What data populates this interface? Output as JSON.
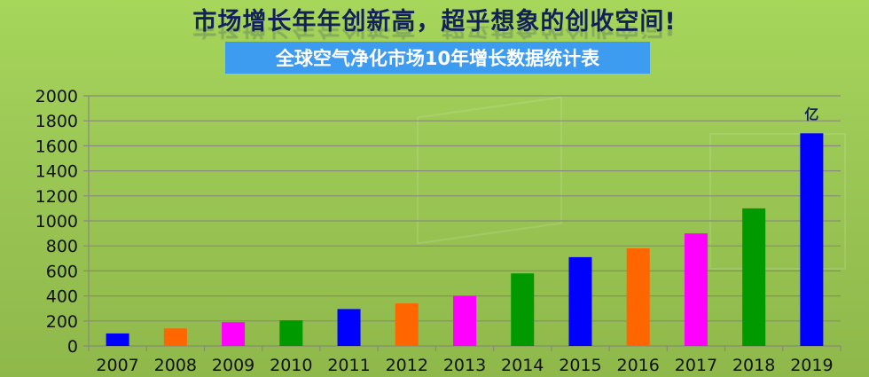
{
  "header": {
    "headline": "市场增长年年创新高，超乎想象的创收空间!",
    "subtitle": "全球空气净化市场10年增长数据统计表"
  },
  "chart_data": {
    "type": "bar",
    "title": "全球空气净化市场10年增长数据统计表",
    "unit_label": "亿",
    "categories": [
      "2007",
      "2008",
      "2009",
      "2010",
      "2011",
      "2012",
      "2013",
      "2014",
      "2015",
      "2016",
      "2017",
      "2018",
      "2019"
    ],
    "values": [
      100,
      140,
      190,
      205,
      295,
      340,
      400,
      580,
      710,
      780,
      900,
      1100,
      1700
    ],
    "colors": [
      "#0000ff",
      "#ff6600",
      "#ff00ff",
      "#009900",
      "#0000ff",
      "#ff6600",
      "#ff00ff",
      "#009900",
      "#0000ff",
      "#ff6600",
      "#ff00ff",
      "#009900",
      "#0000ff"
    ],
    "yticks": [
      0,
      200,
      400,
      600,
      800,
      1000,
      1200,
      1400,
      1600,
      1800,
      2000
    ],
    "ylim": [
      0,
      2000
    ],
    "grid": true,
    "xlabel": "",
    "ylabel": ""
  }
}
